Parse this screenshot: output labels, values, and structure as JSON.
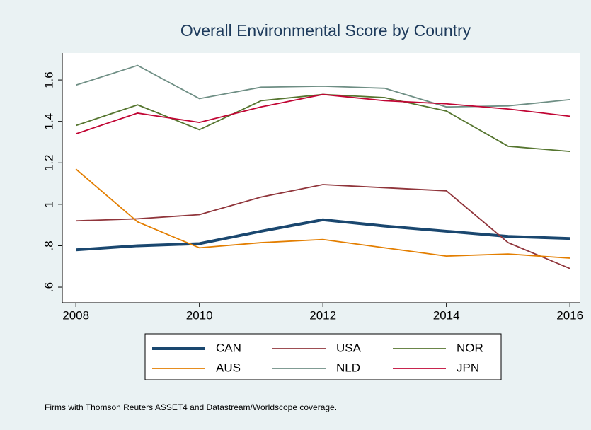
{
  "chart_data": {
    "type": "line",
    "title": "Overall Environmental Score by Country",
    "note": "Firms with Thomson Reuters ASSET4 and Datastream/Worldscope coverage.",
    "x": [
      2008,
      2009,
      2010,
      2011,
      2012,
      2013,
      2014,
      2015,
      2016
    ],
    "xlim": [
      2007.78,
      2016.17
    ],
    "xticks": [
      2008,
      2010,
      2012,
      2014,
      2016
    ],
    "ylim": [
      0.525,
      1.73
    ],
    "yticks": [
      {
        "value": 0.6,
        "label": ".6"
      },
      {
        "value": 0.8,
        "label": ".8"
      },
      1,
      1.2,
      1.4,
      1.6
    ],
    "grid": false,
    "series": [
      {
        "name": "CAN",
        "color": "#1a476f",
        "values": [
          0.78,
          0.8,
          0.81,
          0.87,
          0.925,
          0.895,
          0.87,
          0.845,
          0.835
        ]
      },
      {
        "name": "USA",
        "color": "#90353b",
        "values": [
          0.92,
          0.93,
          0.95,
          1.035,
          1.095,
          1.08,
          1.065,
          0.815,
          0.69
        ]
      },
      {
        "name": "NOR",
        "color": "#55752f",
        "values": [
          1.38,
          1.48,
          1.36,
          1.5,
          1.53,
          1.515,
          1.45,
          1.28,
          1.255
        ]
      },
      {
        "name": "AUS",
        "color": "#e37e00",
        "values": [
          1.17,
          0.915,
          0.79,
          0.815,
          0.83,
          0.79,
          0.75,
          0.76,
          0.74
        ]
      },
      {
        "name": "NLD",
        "color": "#6e8e84",
        "values": [
          1.575,
          1.67,
          1.51,
          1.565,
          1.57,
          1.56,
          1.47,
          1.475,
          1.505
        ]
      },
      {
        "name": "JPN",
        "color": "#c10534",
        "values": [
          1.34,
          1.44,
          1.395,
          1.47,
          1.53,
          1.5,
          1.485,
          1.46,
          1.425
        ]
      }
    ]
  }
}
